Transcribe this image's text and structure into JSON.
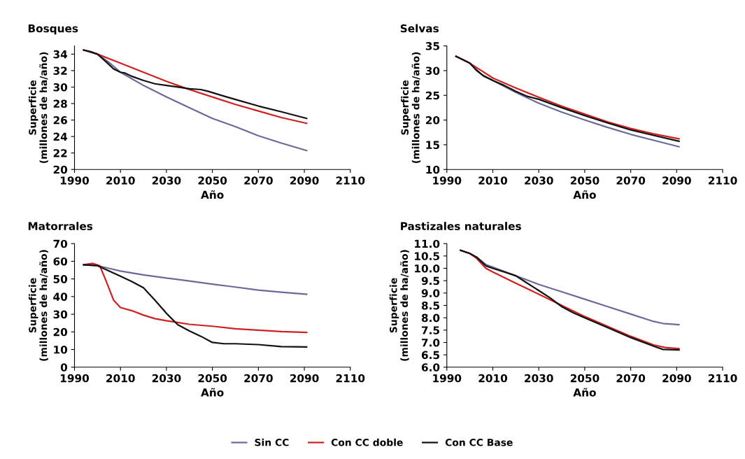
{
  "chart_data": [
    {
      "type": "line",
      "title": "Bosques",
      "xlabel": "Año",
      "ylabel": "Superficie\n(millones de ha/año)",
      "xlim": [
        1990,
        2110
      ],
      "xticks": [
        1990,
        2010,
        2030,
        2050,
        2070,
        2090,
        2110
      ],
      "ylim": [
        20,
        35
      ],
      "yticks": [
        20,
        22,
        24,
        26,
        28,
        30,
        32,
        34
      ],
      "grid": false,
      "legend": "bottom",
      "line_style": "solid",
      "marker": "none",
      "series": [
        {
          "name": "Sin CC",
          "color": "#6a6a9a",
          "x": [
            1994,
            2000,
            2005,
            2010,
            2020,
            2030,
            2040,
            2050,
            2060,
            2070,
            2080,
            2091
          ],
          "values": [
            34.5,
            34.0,
            33.0,
            31.8,
            30.2,
            28.8,
            27.5,
            26.2,
            25.2,
            24.1,
            23.2,
            22.3
          ]
        },
        {
          "name": "Con CC doble",
          "color": "#d02020",
          "x": [
            1994,
            2000,
            2010,
            2020,
            2030,
            2040,
            2050,
            2060,
            2070,
            2080,
            2091
          ],
          "values": [
            34.5,
            34.0,
            32.9,
            31.8,
            30.7,
            29.7,
            28.8,
            27.9,
            27.1,
            26.3,
            25.6
          ]
        },
        {
          "name": "Con CC Base",
          "color": "#111111",
          "x": [
            1994,
            1997,
            2000,
            2004,
            2007,
            2010,
            2012,
            2015,
            2020,
            2025,
            2030,
            2035,
            2040,
            2045,
            2048,
            2055,
            2060,
            2070,
            2080,
            2091
          ],
          "values": [
            34.5,
            34.3,
            34.0,
            33.0,
            32.2,
            31.8,
            31.7,
            31.3,
            30.8,
            30.4,
            30.2,
            30.0,
            29.8,
            29.7,
            29.5,
            28.9,
            28.5,
            27.7,
            27.0,
            26.2
          ]
        }
      ]
    },
    {
      "type": "line",
      "title": "Selvas",
      "xlabel": "Año",
      "ylabel": "Superficie\n(millones de ha/año)",
      "xlim": [
        1990,
        2110
      ],
      "xticks": [
        1990,
        2010,
        2030,
        2050,
        2070,
        2090,
        2110
      ],
      "ylim": [
        10,
        35
      ],
      "yticks": [
        10,
        15,
        20,
        25,
        30,
        35
      ],
      "grid": false,
      "legend": false,
      "line_style": "solid",
      "marker": "none",
      "series": [
        {
          "color": "#6a6a9a",
          "x": [
            1994,
            2000,
            2005,
            2010,
            2020,
            2030,
            2040,
            2050,
            2060,
            2070,
            2080,
            2091
          ],
          "values": [
            32.9,
            31.5,
            29.3,
            28.0,
            25.6,
            23.4,
            21.6,
            20.0,
            18.5,
            17.1,
            15.9,
            14.6
          ]
        },
        {
          "color": "#d02020",
          "x": [
            1994,
            2000,
            2005,
            2010,
            2020,
            2030,
            2040,
            2050,
            2060,
            2070,
            2080,
            2091
          ],
          "values": [
            32.9,
            31.5,
            30.0,
            28.5,
            26.5,
            24.6,
            22.8,
            21.2,
            19.6,
            18.3,
            17.2,
            16.2
          ]
        },
        {
          "color": "#111111",
          "x": [
            1994,
            2000,
            2003,
            2006,
            2010,
            2015,
            2020,
            2025,
            2030,
            2040,
            2050,
            2060,
            2070,
            2080,
            2091
          ],
          "values": [
            32.9,
            31.5,
            30.0,
            28.9,
            28.0,
            27.0,
            25.8,
            24.8,
            24.2,
            22.5,
            20.9,
            19.4,
            18.0,
            16.9,
            15.7
          ]
        }
      ]
    },
    {
      "type": "line",
      "title": "Matorrales",
      "xlabel": "Año",
      "ylabel": "Superficie\n(millones de ha/año)",
      "xlim": [
        1990,
        2110
      ],
      "xticks": [
        1990,
        2010,
        2030,
        2050,
        2070,
        2090,
        2110
      ],
      "ylim": [
        0,
        70
      ],
      "yticks": [
        0,
        10,
        20,
        30,
        40,
        50,
        60,
        70
      ],
      "grid": false,
      "legend": false,
      "line_style": "solid",
      "marker": "none",
      "series": [
        {
          "color": "#6a6a9a",
          "x": [
            1994,
            2000,
            2005,
            2010,
            2020,
            2030,
            2040,
            2050,
            2060,
            2070,
            2080,
            2091
          ],
          "values": [
            58,
            57.5,
            56,
            54.5,
            52.3,
            50.5,
            48.8,
            47,
            45.4,
            43.7,
            42.5,
            41.3
          ]
        },
        {
          "color": "#d02020",
          "x": [
            1994,
            1998,
            2001,
            2004,
            2007,
            2010,
            2015,
            2020,
            2025,
            2030,
            2040,
            2050,
            2060,
            2070,
            2080,
            2091
          ],
          "values": [
            58,
            58.8,
            57.5,
            48,
            38,
            33.8,
            32,
            29.5,
            27.5,
            26.3,
            24.3,
            23.2,
            21.8,
            21,
            20.2,
            19.7
          ]
        },
        {
          "color": "#111111",
          "x": [
            1994,
            2000,
            2005,
            2010,
            2015,
            2020,
            2025,
            2030,
            2035,
            2040,
            2045,
            2050,
            2055,
            2060,
            2070,
            2080,
            2091
          ],
          "values": [
            58,
            57.5,
            54.5,
            51.5,
            48.5,
            45,
            38,
            30.5,
            24,
            20.5,
            17.5,
            14,
            13.3,
            13.3,
            12.8,
            11.7,
            11.5
          ]
        }
      ]
    },
    {
      "type": "line",
      "title": "Pastizales naturales",
      "xlabel": "Año",
      "ylabel": "Superficie\n(millones de ha/año)",
      "xlim": [
        1990,
        2110
      ],
      "xticks": [
        1990,
        2010,
        2030,
        2050,
        2070,
        2090,
        2110
      ],
      "ylim": [
        6,
        11
      ],
      "yticks": [
        {
          "value": 6,
          "label": "6.0"
        },
        6.5,
        {
          "value": 7,
          "label": "7.0"
        },
        7.5,
        {
          "value": 8,
          "label": "8.0"
        },
        8.5,
        {
          "value": 9,
          "label": "9.0"
        },
        9.5,
        {
          "value": 10,
          "label": "10.0"
        },
        10.5,
        {
          "value": 11,
          "label": "11.0"
        }
      ],
      "grid": false,
      "legend": false,
      "line_style": "solid",
      "marker": "none",
      "series": [
        {
          "color": "#6a6a9a",
          "x": [
            1996,
            2000,
            2003,
            2007,
            2010,
            2020,
            2030,
            2040,
            2050,
            2060,
            2070,
            2080,
            2084,
            2091
          ],
          "values": [
            10.73,
            10.6,
            10.45,
            10.15,
            10.05,
            9.7,
            9.35,
            9.05,
            8.75,
            8.45,
            8.15,
            7.85,
            7.77,
            7.72
          ]
        },
        {
          "color": "#d02020",
          "x": [
            1996,
            2000,
            2003,
            2007,
            2010,
            2020,
            2030,
            2040,
            2050,
            2060,
            2070,
            2080,
            2085,
            2091
          ],
          "values": [
            10.73,
            10.6,
            10.4,
            10.0,
            9.85,
            9.4,
            8.95,
            8.5,
            8.05,
            7.65,
            7.25,
            6.9,
            6.8,
            6.75
          ]
        },
        {
          "color": "#111111",
          "x": [
            1996,
            2000,
            2003,
            2007,
            2010,
            2015,
            2020,
            2025,
            2030,
            2035,
            2040,
            2045,
            2050,
            2060,
            2070,
            2080,
            2084,
            2091
          ],
          "values": [
            10.73,
            10.6,
            10.45,
            10.1,
            10.0,
            9.85,
            9.7,
            9.4,
            9.1,
            8.8,
            8.45,
            8.2,
            8.0,
            7.6,
            7.2,
            6.85,
            6.72,
            6.7
          ]
        }
      ]
    }
  ]
}
